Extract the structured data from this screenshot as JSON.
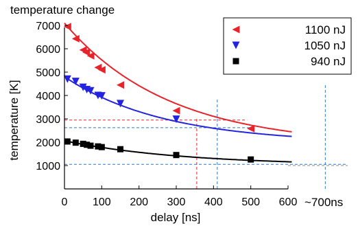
{
  "chart_data": {
    "type": "scatter",
    "title": "temperature change",
    "xlabel": "delay [ns]",
    "ylabel": "temperature [K]",
    "xlim": [
      0,
      600
    ],
    "ylim": [
      0,
      7500
    ],
    "xticks": [
      0,
      100,
      200,
      300,
      400,
      500,
      600
    ],
    "yticks": [
      1000,
      2000,
      3000,
      4000,
      5000,
      6000,
      7000
    ],
    "extra_label": "~700ns",
    "legend_position": "top-right",
    "series": [
      {
        "name": "1100 nJ",
        "color": "#e8232a",
        "marker": "triangle-left",
        "x": [
          8,
          30,
          50,
          58,
          70,
          90,
          100,
          150,
          300,
          500
        ],
        "y": [
          6950,
          6430,
          5950,
          5850,
          5700,
          5200,
          5100,
          4450,
          3350,
          2580
        ],
        "fit": {
          "a": 1850,
          "b": 5250,
          "tau": 280
        }
      },
      {
        "name": "1050 nJ",
        "color": "#2323e0",
        "marker": "triangle-down",
        "x": [
          8,
          30,
          50,
          60,
          70,
          90,
          100,
          150,
          300
        ],
        "y": [
          4700,
          4600,
          4350,
          4250,
          4200,
          4000,
          3980,
          3650,
          2980
        ],
        "fit": {
          "a": 1950,
          "b": 2850,
          "tau": 270
        }
      },
      {
        "name": "940 nJ",
        "color": "#000000",
        "marker": "square",
        "x": [
          8,
          30,
          50,
          60,
          70,
          90,
          100,
          150,
          300,
          500
        ],
        "y": [
          2030,
          1980,
          1930,
          1890,
          1850,
          1820,
          1790,
          1700,
          1450,
          1260
        ],
        "fit": {
          "a": 1000,
          "b": 1060,
          "tau": 320
        }
      }
    ],
    "guides": [
      {
        "type": "vline",
        "x": 355,
        "y0": 0,
        "y1": 3000,
        "color": "#e8232a"
      },
      {
        "type": "hline",
        "y": 2950,
        "x0": 0,
        "x1": 490,
        "color": "#e8232a"
      },
      {
        "type": "vline",
        "x": 410,
        "y0": 0,
        "y1": 3900,
        "color": "#2e78c8"
      },
      {
        "type": "hline",
        "y": 2620,
        "x0": 0,
        "x1": 510,
        "color": "#2e78c8"
      },
      {
        "type": "vline",
        "x": 700,
        "y0": 0,
        "y1": 4500,
        "color": "#2e78c8"
      },
      {
        "type": "hline",
        "y": 1050,
        "x0": 0,
        "x1": 760,
        "color": "#2e78c8"
      },
      {
        "type": "hline",
        "y": 1000,
        "x0": 600,
        "x1": 760,
        "color": "#888888"
      }
    ]
  }
}
